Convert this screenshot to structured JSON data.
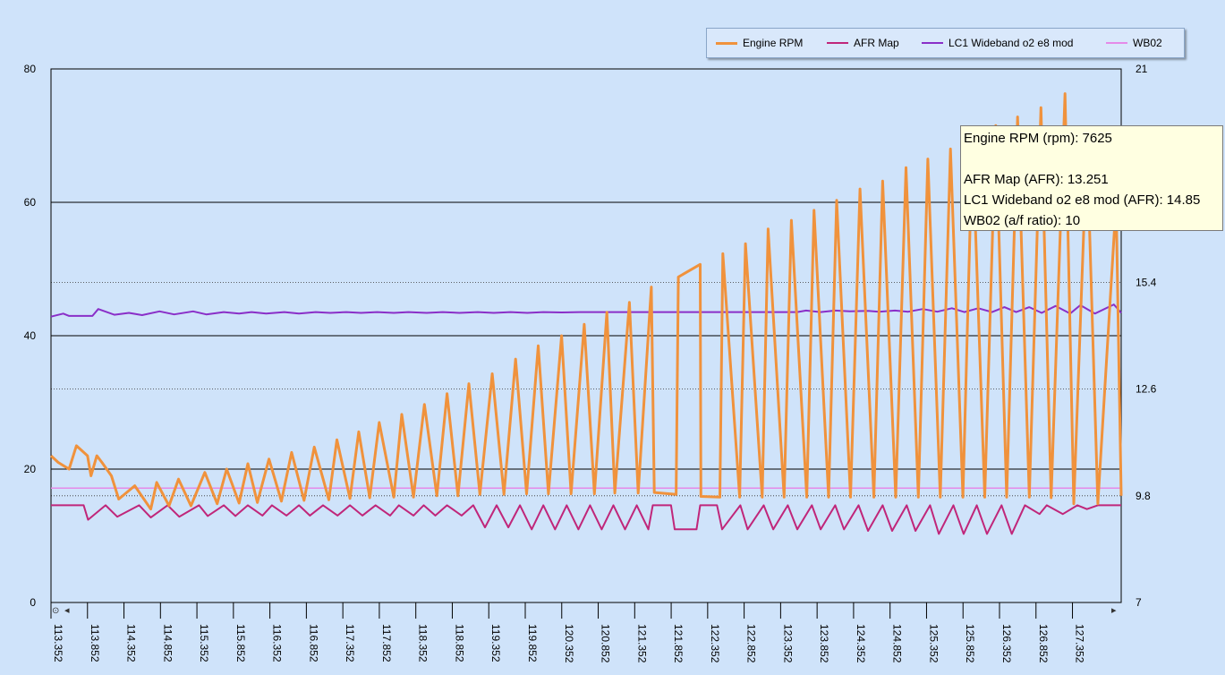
{
  "chart_data": {
    "type": "line",
    "legend": [
      {
        "name": "Engine RPM",
        "color": "#f0923c"
      },
      {
        "name": "AFR Map",
        "color": "#c0267a"
      },
      {
        "name": "LC1 Wideband o2 e8 mod",
        "color": "#8a2fc8"
      },
      {
        "name": "WB02",
        "color": "#e58ae8"
      }
    ],
    "legend_placement": "top-right",
    "x_ticks": [
      "113.352",
      "113.852",
      "114.352",
      "114.852",
      "115.352",
      "115.852",
      "116.352",
      "116.852",
      "117.352",
      "117.852",
      "118.352",
      "118.852",
      "119.352",
      "119.852",
      "120.352",
      "120.852",
      "121.352",
      "121.852",
      "122.352",
      "122.852",
      "123.352",
      "123.852",
      "124.352",
      "124.852",
      "125.352",
      "125.852",
      "126.352",
      "126.852",
      "127.352"
    ],
    "y_left": {
      "range": [
        0,
        80
      ],
      "ticks": [
        "0",
        "20",
        "40",
        "60",
        "80"
      ]
    },
    "y_right": {
      "range": [
        7,
        21
      ],
      "ticks": [
        "7",
        "9.8",
        "12.6",
        "15.4",
        "21"
      ]
    },
    "grid": true,
    "series": [
      {
        "name": "Engine RPM",
        "axis": "left",
        "color": "#f0923c",
        "points": [
          [
            113.352,
            22
          ],
          [
            113.45,
            21
          ],
          [
            113.6,
            20
          ],
          [
            113.7,
            23.5
          ],
          [
            113.852,
            22
          ],
          [
            113.9,
            19
          ],
          [
            113.98,
            22
          ],
          [
            114.05,
            21
          ],
          [
            114.18,
            19
          ],
          [
            114.28,
            15.5
          ],
          [
            114.5,
            17.5
          ],
          [
            114.72,
            14
          ],
          [
            114.8,
            18
          ],
          [
            114.97,
            14.5
          ],
          [
            115.1,
            18.5
          ],
          [
            115.27,
            14.5
          ],
          [
            115.46,
            19.5
          ],
          [
            115.63,
            14.8
          ],
          [
            115.76,
            20
          ],
          [
            115.93,
            14.9
          ],
          [
            116.05,
            20.8
          ],
          [
            116.18,
            15
          ],
          [
            116.34,
            21.5
          ],
          [
            116.51,
            15.2
          ],
          [
            116.65,
            22.5
          ],
          [
            116.82,
            15.3
          ],
          [
            116.96,
            23.3
          ],
          [
            117.16,
            15.4
          ],
          [
            117.27,
            24.4
          ],
          [
            117.45,
            15.6
          ],
          [
            117.57,
            25.6
          ],
          [
            117.72,
            15.7
          ],
          [
            117.85,
            27
          ],
          [
            118.05,
            15.8
          ],
          [
            118.16,
            28.2
          ],
          [
            118.32,
            15.8
          ],
          [
            118.47,
            29.7
          ],
          [
            118.64,
            16
          ],
          [
            118.78,
            31.3
          ],
          [
            118.93,
            16
          ],
          [
            119.08,
            32.8
          ],
          [
            119.23,
            16.2
          ],
          [
            119.4,
            34.3
          ],
          [
            119.56,
            16.2
          ],
          [
            119.72,
            36.5
          ],
          [
            119.87,
            16.3
          ],
          [
            120.03,
            38.5
          ],
          [
            120.17,
            16.3
          ],
          [
            120.35,
            40
          ],
          [
            120.48,
            16.3
          ],
          [
            120.66,
            41.7
          ],
          [
            120.8,
            16.3
          ],
          [
            120.97,
            43.5
          ],
          [
            121.08,
            16.4
          ],
          [
            121.28,
            45
          ],
          [
            121.4,
            16.4
          ],
          [
            121.58,
            47.3
          ],
          [
            121.62,
            16.5
          ],
          [
            121.92,
            16.2
          ],
          [
            121.95,
            48.8
          ],
          [
            122.25,
            50.7
          ],
          [
            122.26,
            15.9
          ],
          [
            122.52,
            15.8
          ],
          [
            122.56,
            52.3
          ],
          [
            122.79,
            15.8
          ],
          [
            122.87,
            53.8
          ],
          [
            123.1,
            15.8
          ],
          [
            123.18,
            56
          ],
          [
            123.4,
            15.8
          ],
          [
            123.5,
            57.3
          ],
          [
            123.71,
            15.8
          ],
          [
            123.81,
            58.8
          ],
          [
            124.01,
            15.8
          ],
          [
            124.12,
            60.3
          ],
          [
            124.31,
            15.8
          ],
          [
            124.44,
            62
          ],
          [
            124.63,
            15.8
          ],
          [
            124.75,
            63.2
          ],
          [
            124.93,
            15.8
          ],
          [
            125.07,
            65.2
          ],
          [
            125.24,
            15.8
          ],
          [
            125.37,
            66.5
          ],
          [
            125.54,
            15.8
          ],
          [
            125.68,
            68
          ],
          [
            125.85,
            15.8
          ],
          [
            125.98,
            69.5
          ],
          [
            126.15,
            15.8
          ],
          [
            126.3,
            71.5
          ],
          [
            126.45,
            15.8
          ],
          [
            126.6,
            72.8
          ],
          [
            126.76,
            15.8
          ],
          [
            126.92,
            74.2
          ],
          [
            127.06,
            15.7
          ],
          [
            127.25,
            76.3
          ],
          [
            127.37,
            14.8
          ],
          [
            127.55,
            69
          ],
          [
            127.7,
            14.8
          ],
          [
            127.95,
            60
          ],
          [
            128.02,
            16
          ]
        ]
      },
      {
        "name": "AFR Map",
        "axis": "right",
        "color": "#c0267a",
        "points": [
          [
            113.352,
            9.55
          ],
          [
            113.8,
            9.55
          ],
          [
            113.86,
            9.17
          ],
          [
            114.1,
            9.55
          ],
          [
            114.26,
            9.25
          ],
          [
            114.56,
            9.55
          ],
          [
            114.72,
            9.23
          ],
          [
            114.95,
            9.55
          ],
          [
            115.11,
            9.25
          ],
          [
            115.38,
            9.55
          ],
          [
            115.5,
            9.27
          ],
          [
            115.72,
            9.55
          ],
          [
            115.88,
            9.27
          ],
          [
            116.05,
            9.55
          ],
          [
            116.25,
            9.28
          ],
          [
            116.38,
            9.55
          ],
          [
            116.58,
            9.28
          ],
          [
            116.75,
            9.55
          ],
          [
            116.9,
            9.28
          ],
          [
            117.08,
            9.55
          ],
          [
            117.28,
            9.28
          ],
          [
            117.45,
            9.55
          ],
          [
            117.62,
            9.28
          ],
          [
            117.8,
            9.55
          ],
          [
            118,
            9.28
          ],
          [
            118.12,
            9.55
          ],
          [
            118.32,
            9.28
          ],
          [
            118.46,
            9.55
          ],
          [
            118.62,
            9.28
          ],
          [
            118.78,
            9.55
          ],
          [
            118.98,
            9.28
          ],
          [
            119.14,
            9.55
          ],
          [
            119.3,
            8.97
          ],
          [
            119.46,
            9.55
          ],
          [
            119.62,
            8.97
          ],
          [
            119.78,
            9.55
          ],
          [
            119.94,
            8.92
          ],
          [
            120.1,
            9.55
          ],
          [
            120.26,
            8.92
          ],
          [
            120.42,
            9.55
          ],
          [
            120.58,
            8.92
          ],
          [
            120.74,
            9.55
          ],
          [
            120.9,
            8.92
          ],
          [
            121.06,
            9.55
          ],
          [
            121.22,
            8.92
          ],
          [
            121.38,
            9.55
          ],
          [
            121.54,
            8.92
          ],
          [
            121.6,
            9.55
          ],
          [
            121.85,
            9.55
          ],
          [
            121.9,
            8.92
          ],
          [
            122.2,
            8.92
          ],
          [
            122.25,
            9.55
          ],
          [
            122.48,
            9.55
          ],
          [
            122.55,
            8.92
          ],
          [
            122.8,
            9.55
          ],
          [
            122.9,
            8.92
          ],
          [
            123.12,
            9.55
          ],
          [
            123.25,
            8.92
          ],
          [
            123.45,
            9.55
          ],
          [
            123.58,
            8.92
          ],
          [
            123.78,
            9.55
          ],
          [
            123.9,
            8.92
          ],
          [
            124.1,
            9.55
          ],
          [
            124.22,
            8.92
          ],
          [
            124.42,
            9.55
          ],
          [
            124.55,
            8.88
          ],
          [
            124.75,
            9.55
          ],
          [
            124.88,
            8.88
          ],
          [
            125.08,
            9.55
          ],
          [
            125.2,
            8.88
          ],
          [
            125.4,
            9.55
          ],
          [
            125.52,
            8.8
          ],
          [
            125.72,
            9.55
          ],
          [
            125.86,
            8.8
          ],
          [
            126.04,
            9.55
          ],
          [
            126.18,
            8.8
          ],
          [
            126.38,
            9.55
          ],
          [
            126.52,
            8.8
          ],
          [
            126.7,
            9.55
          ],
          [
            126.9,
            9.32
          ],
          [
            127.0,
            9.55
          ],
          [
            127.22,
            9.32
          ],
          [
            127.42,
            9.55
          ],
          [
            127.55,
            9.45
          ],
          [
            127.7,
            9.55
          ],
          [
            128.02,
            9.55
          ]
        ]
      },
      {
        "name": "LC1 Wideband o2 e8 mod",
        "axis": "right",
        "color": "#8a2fc8",
        "points": [
          [
            113.352,
            14.5
          ],
          [
            113.52,
            14.58
          ],
          [
            113.6,
            14.52
          ],
          [
            113.92,
            14.52
          ],
          [
            114.0,
            14.7
          ],
          [
            114.22,
            14.55
          ],
          [
            114.42,
            14.6
          ],
          [
            114.6,
            14.54
          ],
          [
            114.84,
            14.64
          ],
          [
            115.04,
            14.56
          ],
          [
            115.3,
            14.64
          ],
          [
            115.48,
            14.56
          ],
          [
            115.72,
            14.62
          ],
          [
            115.93,
            14.58
          ],
          [
            116.1,
            14.62
          ],
          [
            116.3,
            14.58
          ],
          [
            116.55,
            14.62
          ],
          [
            116.75,
            14.58
          ],
          [
            116.98,
            14.62
          ],
          [
            117.18,
            14.6
          ],
          [
            117.4,
            14.62
          ],
          [
            117.6,
            14.6
          ],
          [
            117.82,
            14.62
          ],
          [
            118.05,
            14.6
          ],
          [
            118.25,
            14.62
          ],
          [
            118.5,
            14.6
          ],
          [
            118.72,
            14.62
          ],
          [
            118.95,
            14.6
          ],
          [
            119.2,
            14.62
          ],
          [
            119.42,
            14.6
          ],
          [
            119.65,
            14.62
          ],
          [
            119.88,
            14.6
          ],
          [
            120.1,
            14.62
          ],
          [
            120.35,
            14.61
          ],
          [
            120.6,
            14.62
          ],
          [
            121.0,
            14.62
          ],
          [
            122.0,
            14.62
          ],
          [
            123.0,
            14.62
          ],
          [
            123.58,
            14.62
          ],
          [
            123.7,
            14.66
          ],
          [
            123.9,
            14.62
          ],
          [
            124.1,
            14.66
          ],
          [
            124.3,
            14.64
          ],
          [
            124.55,
            14.65
          ],
          [
            124.7,
            14.63
          ],
          [
            124.92,
            14.66
          ],
          [
            125.1,
            14.63
          ],
          [
            125.3,
            14.7
          ],
          [
            125.5,
            14.63
          ],
          [
            125.7,
            14.72
          ],
          [
            125.87,
            14.62
          ],
          [
            126.06,
            14.72
          ],
          [
            126.25,
            14.62
          ],
          [
            126.42,
            14.75
          ],
          [
            126.58,
            14.62
          ],
          [
            126.76,
            14.75
          ],
          [
            126.93,
            14.6
          ],
          [
            127.12,
            14.78
          ],
          [
            127.32,
            14.58
          ],
          [
            127.46,
            14.8
          ],
          [
            127.66,
            14.58
          ],
          [
            127.92,
            14.82
          ],
          [
            128.02,
            14.6
          ]
        ]
      },
      {
        "name": "WB02",
        "axis": "right",
        "color": "#e58ae8",
        "points": [
          [
            113.352,
            10
          ],
          [
            128.02,
            10
          ]
        ]
      }
    ]
  },
  "tooltip": {
    "line1": "Engine RPM (rpm): 7625",
    "line2": "AFR Map (AFR): 13.251",
    "line3": "LC1 Wideband o2 e8 mod (AFR): 14.85",
    "line4": "WB02 (a/f ratio): 10"
  },
  "scrollbar": {
    "left_arrow": "◂",
    "right_arrow": "▸",
    "reset_icon": "⊙"
  }
}
